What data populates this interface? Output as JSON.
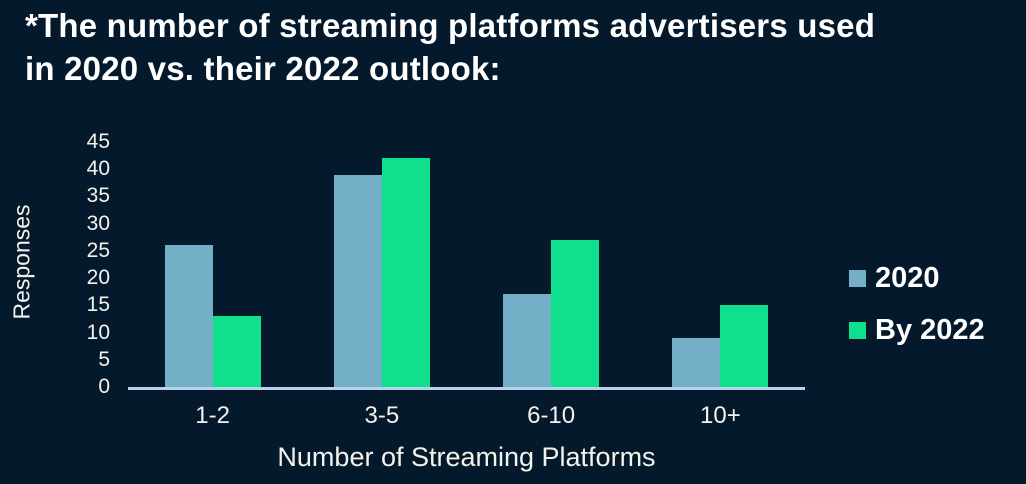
{
  "colors": {
    "background": "#041A2C",
    "title_text": "#FFFFFF",
    "axis_text": "#F3F2EC",
    "axis_line": "#B9D3EE",
    "series_2020": "#74AFC8",
    "series_by_2022": "#10E08C"
  },
  "title": {
    "line1": "*The number of streaming platforms advertisers used",
    "line2": "in 2020 vs. their 2022 outlook:"
  },
  "chart_data": {
    "type": "bar",
    "categories": [
      "1-2",
      "3-5",
      "6-10",
      "10+"
    ],
    "series": [
      {
        "name": "2020",
        "color": "#74AFC8",
        "values": [
          26,
          39,
          17,
          9
        ]
      },
      {
        "name": "By 2022",
        "color": "#10E08C",
        "values": [
          13,
          42,
          27,
          15
        ]
      }
    ],
    "title": "",
    "xlabel": "Number of Streaming Platforms",
    "ylabel": "Responses",
    "ylim": [
      0,
      45
    ],
    "yticks": [
      0,
      5,
      10,
      15,
      20,
      25,
      30,
      35,
      40,
      45
    ],
    "grid": false,
    "legend_position": "right"
  },
  "legend": {
    "items": [
      {
        "label": "2020",
        "color": "#74AFC8"
      },
      {
        "label": "By 2022",
        "color": "#10E08C"
      }
    ]
  }
}
